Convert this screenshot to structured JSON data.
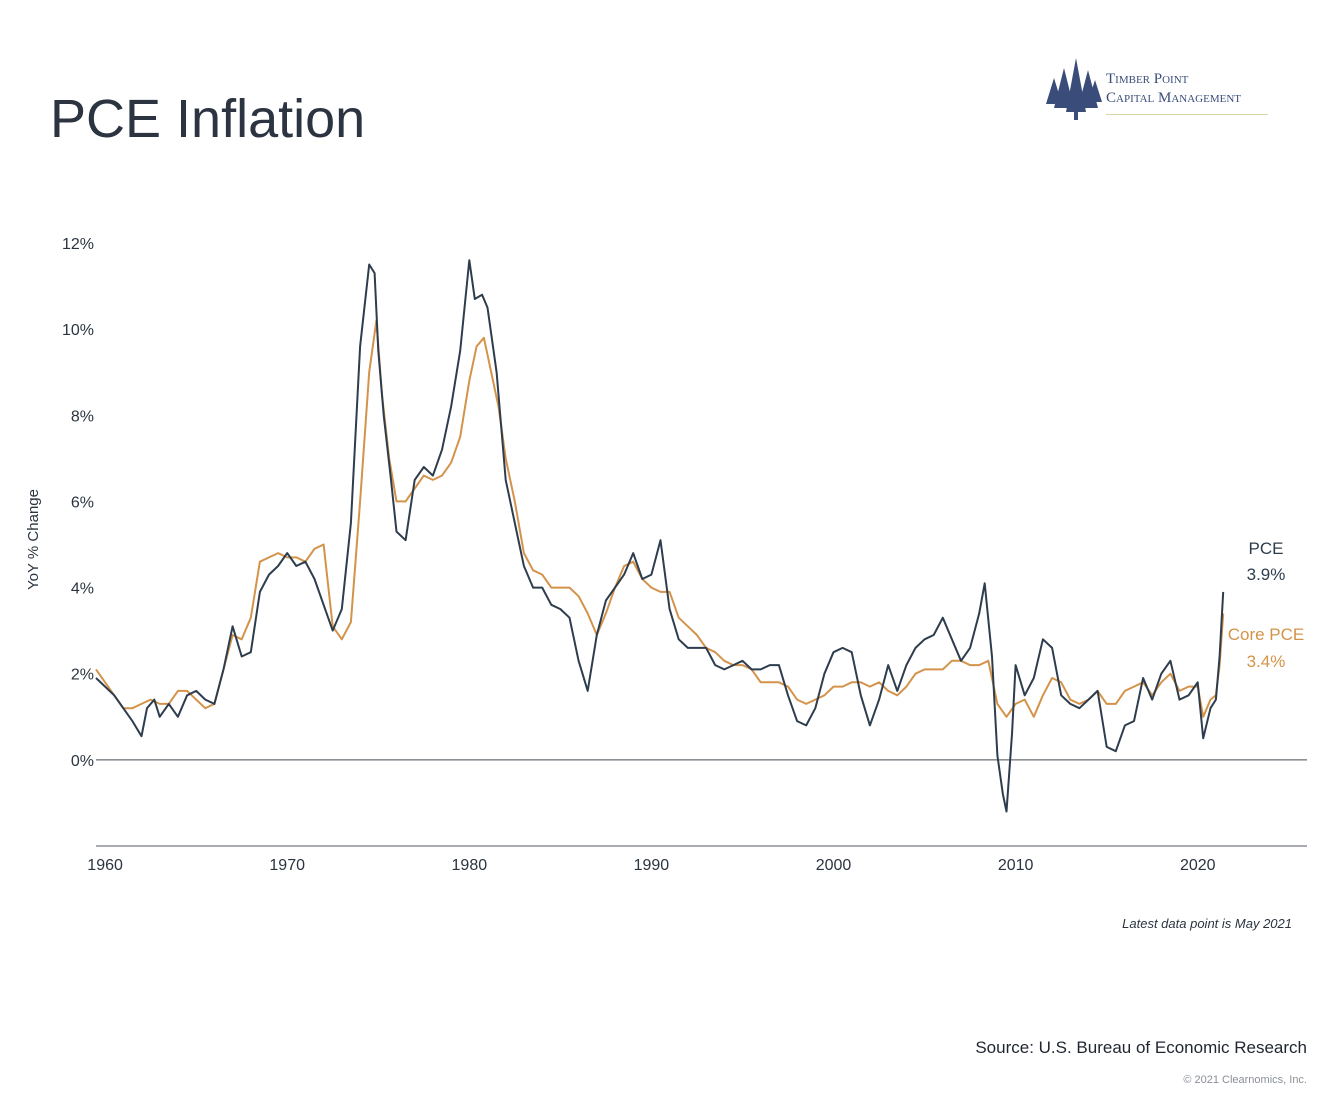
{
  "header": {
    "title": "PCE Inflation",
    "logo_line1": "Timber Point",
    "logo_line2": "Capital Management"
  },
  "footer": {
    "note": "Latest data point is May 2021",
    "source": "Source: U.S. Bureau of Economic Research",
    "copyright": "© 2021 Clearnomics, Inc."
  },
  "colors": {
    "pce": "#2e3d4d",
    "core_pce": "#d4934a",
    "axis": "#8c9196",
    "logo": "#3a4d7a"
  },
  "chart_data": {
    "type": "line",
    "ylabel": "YoY % Change",
    "xlabel": "",
    "xlim": [
      1959.5,
      2026.0
    ],
    "ylim": [
      -2.0,
      12.0
    ],
    "x_ticks": [
      1960,
      1970,
      1980,
      1990,
      2000,
      2010,
      2020
    ],
    "y_ticks": [
      0,
      2,
      4,
      6,
      8,
      10,
      12
    ],
    "y_tick_labels": [
      "0%",
      "2%",
      "4%",
      "6%",
      "8%",
      "10%",
      "12%"
    ],
    "grid": false,
    "legend": "inline labels at end of series (right)",
    "series": [
      {
        "name": "PCE",
        "end_label": "3.9%",
        "points": [
          [
            1959.5,
            1.9
          ],
          [
            1960,
            1.7
          ],
          [
            1960.5,
            1.5
          ],
          [
            1961,
            1.2
          ],
          [
            1961.5,
            0.9
          ],
          [
            1962,
            0.55
          ],
          [
            1962.3,
            1.2
          ],
          [
            1962.7,
            1.4
          ],
          [
            1963,
            1.0
          ],
          [
            1963.5,
            1.3
          ],
          [
            1964,
            1.0
          ],
          [
            1964.5,
            1.5
          ],
          [
            1965,
            1.6
          ],
          [
            1965.5,
            1.4
          ],
          [
            1966,
            1.3
          ],
          [
            1966.5,
            2.1
          ],
          [
            1967,
            3.1
          ],
          [
            1967.5,
            2.4
          ],
          [
            1968,
            2.5
          ],
          [
            1968.5,
            3.9
          ],
          [
            1969,
            4.3
          ],
          [
            1969.5,
            4.5
          ],
          [
            1970,
            4.8
          ],
          [
            1970.5,
            4.5
          ],
          [
            1971,
            4.6
          ],
          [
            1971.5,
            4.2
          ],
          [
            1972,
            3.6
          ],
          [
            1972.5,
            3.0
          ],
          [
            1973,
            3.5
          ],
          [
            1973.5,
            5.5
          ],
          [
            1974,
            9.6
          ],
          [
            1974.5,
            11.5
          ],
          [
            1974.8,
            11.3
          ],
          [
            1975,
            9.5
          ],
          [
            1975.3,
            8.0
          ],
          [
            1975.7,
            6.5
          ],
          [
            1976,
            5.3
          ],
          [
            1976.5,
            5.1
          ],
          [
            1977,
            6.5
          ],
          [
            1977.5,
            6.8
          ],
          [
            1978,
            6.6
          ],
          [
            1978.5,
            7.2
          ],
          [
            1979,
            8.2
          ],
          [
            1979.5,
            9.5
          ],
          [
            1980,
            11.6
          ],
          [
            1980.3,
            10.7
          ],
          [
            1980.7,
            10.8
          ],
          [
            1981,
            10.5
          ],
          [
            1981.5,
            9.0
          ],
          [
            1982,
            6.5
          ],
          [
            1982.5,
            5.5
          ],
          [
            1983,
            4.5
          ],
          [
            1983.5,
            4.0
          ],
          [
            1984,
            4.0
          ],
          [
            1984.5,
            3.6
          ],
          [
            1985,
            3.5
          ],
          [
            1985.5,
            3.3
          ],
          [
            1986,
            2.3
          ],
          [
            1986.5,
            1.6
          ],
          [
            1987,
            2.9
          ],
          [
            1987.5,
            3.7
          ],
          [
            1988,
            4.0
          ],
          [
            1988.5,
            4.3
          ],
          [
            1989,
            4.8
          ],
          [
            1989.5,
            4.2
          ],
          [
            1990,
            4.3
          ],
          [
            1990.5,
            5.1
          ],
          [
            1991,
            3.5
          ],
          [
            1991.5,
            2.8
          ],
          [
            1992,
            2.6
          ],
          [
            1992.5,
            2.6
          ],
          [
            1993,
            2.6
          ],
          [
            1993.5,
            2.2
          ],
          [
            1994,
            2.1
          ],
          [
            1994.5,
            2.2
          ],
          [
            1995,
            2.3
          ],
          [
            1995.5,
            2.1
          ],
          [
            1996,
            2.1
          ],
          [
            1996.5,
            2.2
          ],
          [
            1997,
            2.2
          ],
          [
            1997.5,
            1.5
          ],
          [
            1998,
            0.9
          ],
          [
            1998.5,
            0.8
          ],
          [
            1999,
            1.2
          ],
          [
            1999.5,
            2.0
          ],
          [
            2000,
            2.5
          ],
          [
            2000.5,
            2.6
          ],
          [
            2001,
            2.5
          ],
          [
            2001.5,
            1.5
          ],
          [
            2002,
            0.8
          ],
          [
            2002.5,
            1.4
          ],
          [
            2003,
            2.2
          ],
          [
            2003.5,
            1.6
          ],
          [
            2004,
            2.2
          ],
          [
            2004.5,
            2.6
          ],
          [
            2005,
            2.8
          ],
          [
            2005.5,
            2.9
          ],
          [
            2006,
            3.3
          ],
          [
            2006.5,
            2.8
          ],
          [
            2007,
            2.3
          ],
          [
            2007.5,
            2.6
          ],
          [
            2008,
            3.4
          ],
          [
            2008.3,
            4.1
          ],
          [
            2008.7,
            2.4
          ],
          [
            2009,
            0.1
          ],
          [
            2009.3,
            -0.8
          ],
          [
            2009.5,
            -1.2
          ],
          [
            2009.8,
            0.6
          ],
          [
            2010,
            2.2
          ],
          [
            2010.5,
            1.5
          ],
          [
            2011,
            1.9
          ],
          [
            2011.5,
            2.8
          ],
          [
            2012,
            2.6
          ],
          [
            2012.5,
            1.5
          ],
          [
            2013,
            1.3
          ],
          [
            2013.5,
            1.2
          ],
          [
            2014,
            1.4
          ],
          [
            2014.5,
            1.6
          ],
          [
            2015,
            0.3
          ],
          [
            2015.5,
            0.2
          ],
          [
            2016,
            0.8
          ],
          [
            2016.5,
            0.9
          ],
          [
            2017,
            1.9
          ],
          [
            2017.5,
            1.4
          ],
          [
            2018,
            2.0
          ],
          [
            2018.5,
            2.3
          ],
          [
            2019,
            1.4
          ],
          [
            2019.5,
            1.5
          ],
          [
            2020,
            1.8
          ],
          [
            2020.3,
            0.5
          ],
          [
            2020.7,
            1.2
          ],
          [
            2021,
            1.4
          ],
          [
            2021.2,
            2.4
          ],
          [
            2021.4,
            3.9
          ]
        ]
      },
      {
        "name": "Core PCE",
        "end_label": "3.4%",
        "points": [
          [
            1959.5,
            2.1
          ],
          [
            1960,
            1.8
          ],
          [
            1960.5,
            1.5
          ],
          [
            1961,
            1.2
          ],
          [
            1961.5,
            1.2
          ],
          [
            1962,
            1.3
          ],
          [
            1962.5,
            1.4
          ],
          [
            1963,
            1.3
          ],
          [
            1963.5,
            1.3
          ],
          [
            1964,
            1.6
          ],
          [
            1964.5,
            1.6
          ],
          [
            1965,
            1.4
          ],
          [
            1965.5,
            1.2
          ],
          [
            1966,
            1.3
          ],
          [
            1966.5,
            2.1
          ],
          [
            1967,
            2.9
          ],
          [
            1967.5,
            2.8
          ],
          [
            1968,
            3.3
          ],
          [
            1968.5,
            4.6
          ],
          [
            1969,
            4.7
          ],
          [
            1969.5,
            4.8
          ],
          [
            1970,
            4.7
          ],
          [
            1970.5,
            4.7
          ],
          [
            1971,
            4.6
          ],
          [
            1971.5,
            4.9
          ],
          [
            1972,
            5.0
          ],
          [
            1972.5,
            3.1
          ],
          [
            1973,
            2.8
          ],
          [
            1973.5,
            3.2
          ],
          [
            1974,
            6.0
          ],
          [
            1974.5,
            9.0
          ],
          [
            1974.9,
            10.2
          ],
          [
            1975.2,
            8.5
          ],
          [
            1975.6,
            7.0
          ],
          [
            1976,
            6.0
          ],
          [
            1976.5,
            6.0
          ],
          [
            1977,
            6.3
          ],
          [
            1977.5,
            6.6
          ],
          [
            1978,
            6.5
          ],
          [
            1978.5,
            6.6
          ],
          [
            1979,
            6.9
          ],
          [
            1979.5,
            7.5
          ],
          [
            1980,
            8.8
          ],
          [
            1980.4,
            9.6
          ],
          [
            1980.8,
            9.8
          ],
          [
            1981.2,
            9.0
          ],
          [
            1981.6,
            8.2
          ],
          [
            1982,
            7.0
          ],
          [
            1982.5,
            6.0
          ],
          [
            1983,
            4.8
          ],
          [
            1983.5,
            4.4
          ],
          [
            1984,
            4.3
          ],
          [
            1984.5,
            4.0
          ],
          [
            1985,
            4.0
          ],
          [
            1985.5,
            4.0
          ],
          [
            1986,
            3.8
          ],
          [
            1986.5,
            3.4
          ],
          [
            1987,
            2.9
          ],
          [
            1987.5,
            3.4
          ],
          [
            1988,
            4.0
          ],
          [
            1988.5,
            4.5
          ],
          [
            1989,
            4.6
          ],
          [
            1989.5,
            4.2
          ],
          [
            1990,
            4.0
          ],
          [
            1990.5,
            3.9
          ],
          [
            1991,
            3.9
          ],
          [
            1991.5,
            3.3
          ],
          [
            1992,
            3.1
          ],
          [
            1992.5,
            2.9
          ],
          [
            1993,
            2.6
          ],
          [
            1993.5,
            2.5
          ],
          [
            1994,
            2.3
          ],
          [
            1994.5,
            2.2
          ],
          [
            1995,
            2.2
          ],
          [
            1995.5,
            2.1
          ],
          [
            1996,
            1.8
          ],
          [
            1996.5,
            1.8
          ],
          [
            1997,
            1.8
          ],
          [
            1997.5,
            1.7
          ],
          [
            1998,
            1.4
          ],
          [
            1998.5,
            1.3
          ],
          [
            1999,
            1.4
          ],
          [
            1999.5,
            1.5
          ],
          [
            2000,
            1.7
          ],
          [
            2000.5,
            1.7
          ],
          [
            2001,
            1.8
          ],
          [
            2001.5,
            1.8
          ],
          [
            2002,
            1.7
          ],
          [
            2002.5,
            1.8
          ],
          [
            2003,
            1.6
          ],
          [
            2003.5,
            1.5
          ],
          [
            2004,
            1.7
          ],
          [
            2004.5,
            2.0
          ],
          [
            2005,
            2.1
          ],
          [
            2005.5,
            2.1
          ],
          [
            2006,
            2.1
          ],
          [
            2006.5,
            2.3
          ],
          [
            2007,
            2.3
          ],
          [
            2007.5,
            2.2
          ],
          [
            2008,
            2.2
          ],
          [
            2008.5,
            2.3
          ],
          [
            2009,
            1.3
          ],
          [
            2009.5,
            1.0
          ],
          [
            2010,
            1.3
          ],
          [
            2010.5,
            1.4
          ],
          [
            2011,
            1.0
          ],
          [
            2011.5,
            1.5
          ],
          [
            2012,
            1.9
          ],
          [
            2012.5,
            1.8
          ],
          [
            2013,
            1.4
          ],
          [
            2013.5,
            1.3
          ],
          [
            2014,
            1.4
          ],
          [
            2014.5,
            1.6
          ],
          [
            2015,
            1.3
          ],
          [
            2015.5,
            1.3
          ],
          [
            2016,
            1.6
          ],
          [
            2016.5,
            1.7
          ],
          [
            2017,
            1.8
          ],
          [
            2017.5,
            1.5
          ],
          [
            2018,
            1.8
          ],
          [
            2018.5,
            2.0
          ],
          [
            2019,
            1.6
          ],
          [
            2019.5,
            1.7
          ],
          [
            2020,
            1.7
          ],
          [
            2020.3,
            1.0
          ],
          [
            2020.7,
            1.4
          ],
          [
            2021,
            1.5
          ],
          [
            2021.2,
            2.2
          ],
          [
            2021.4,
            3.4
          ]
        ]
      }
    ]
  }
}
